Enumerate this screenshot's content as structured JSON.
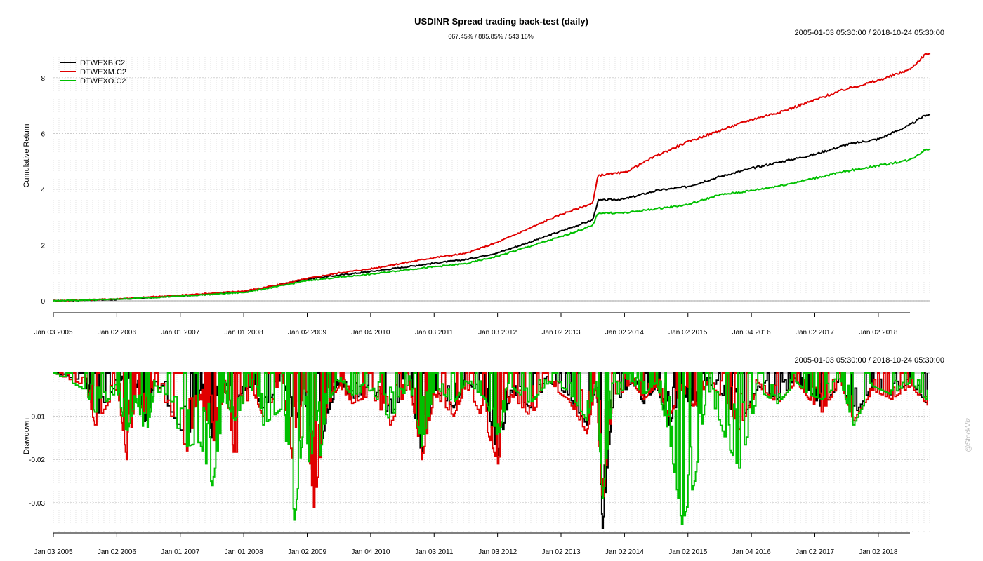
{
  "chart_data": [
    {
      "type": "line",
      "title": "USDINR Spread trading back-test (daily)",
      "subtitle": "667.45% / 885.85% / 543.16%",
      "date_range": "2005-01-03 05:30:00 / 2018-10-24 05:30:00",
      "xlabel": "",
      "ylabel": "Cumulative Return",
      "ylim": [
        0,
        8.9
      ],
      "yticks": [
        0,
        2,
        4,
        6,
        8
      ],
      "grid": true,
      "legend_position": "top-left",
      "x_ticks": [
        "Jan 03 2005",
        "Jan 02 2006",
        "Jan 01 2007",
        "Jan 01 2008",
        "Jan 02 2009",
        "Jan 04 2010",
        "Jan 03 2011",
        "Jan 03 2012",
        "Jan 02 2013",
        "Jan 02 2014",
        "Jan 02 2015",
        "Jan 04 2016",
        "Jan 02 2017",
        "Jan 02 2018"
      ],
      "x": [
        "2005-01",
        "2006-01",
        "2007-01",
        "2008-01",
        "2008-07",
        "2009-01",
        "2009-07",
        "2010-01",
        "2010-07",
        "2011-01",
        "2011-07",
        "2012-01",
        "2012-07",
        "2013-01",
        "2013-07",
        "2013-08",
        "2014-01",
        "2014-07",
        "2015-01",
        "2015-07",
        "2016-01",
        "2016-07",
        "2017-01",
        "2017-07",
        "2018-01",
        "2018-07",
        "2018-10"
      ],
      "series": [
        {
          "name": "DTWEXB.C2",
          "color": "#000000",
          "values": [
            0.0,
            0.05,
            0.18,
            0.32,
            0.55,
            0.78,
            0.92,
            1.05,
            1.2,
            1.35,
            1.48,
            1.72,
            2.1,
            2.5,
            2.9,
            3.6,
            3.65,
            3.95,
            4.1,
            4.45,
            4.75,
            5.0,
            5.25,
            5.6,
            5.8,
            6.3,
            6.67
          ]
        },
        {
          "name": "DTWEXM.C2",
          "color": "#e00000",
          "values": [
            0.0,
            0.07,
            0.2,
            0.35,
            0.55,
            0.8,
            1.0,
            1.15,
            1.35,
            1.55,
            1.7,
            2.1,
            2.6,
            3.1,
            3.5,
            4.5,
            4.6,
            5.2,
            5.7,
            6.1,
            6.5,
            6.8,
            7.2,
            7.6,
            7.9,
            8.3,
            8.86
          ]
        },
        {
          "name": "DTWEXO.C2",
          "color": "#00c000",
          "values": [
            0.0,
            0.06,
            0.17,
            0.3,
            0.5,
            0.72,
            0.85,
            0.95,
            1.1,
            1.22,
            1.33,
            1.6,
            1.95,
            2.3,
            2.7,
            3.15,
            3.15,
            3.3,
            3.45,
            3.8,
            3.95,
            4.15,
            4.4,
            4.65,
            4.85,
            5.05,
            5.43
          ]
        }
      ]
    },
    {
      "type": "line",
      "title": "",
      "date_range": "2005-01-03 05:30:00 / 2018-10-24 05:30:00",
      "xlabel": "",
      "ylabel": "Drawdown",
      "ylim": [
        -0.037,
        0.0
      ],
      "yticks": [
        -0.01,
        -0.02,
        -0.03
      ],
      "ytick_labels": [
        "-0.01",
        "-0.02",
        "-0.03"
      ],
      "grid": true,
      "x_ticks": [
        "Jan 03 2005",
        "Jan 02 2006",
        "Jan 01 2007",
        "Jan 01 2008",
        "Jan 02 2009",
        "Jan 04 2010",
        "Jan 03 2011",
        "Jan 03 2012",
        "Jan 02 2013",
        "Jan 02 2014",
        "Jan 02 2015",
        "Jan 04 2016",
        "Jan 02 2017",
        "Jan 02 2018"
      ],
      "t": [
        2005.0,
        2005.5,
        2005.65,
        2006.0,
        2006.15,
        2006.3,
        2006.45,
        2006.6,
        2007.1,
        2007.3,
        2007.5,
        2007.7,
        2007.85,
        2008.1,
        2008.3,
        2008.6,
        2008.8,
        2008.95,
        2009.1,
        2009.3,
        2009.5,
        2009.7,
        2010.0,
        2010.3,
        2010.6,
        2010.8,
        2011.0,
        2011.3,
        2011.5,
        2011.8,
        2012.0,
        2012.2,
        2012.5,
        2012.8,
        2013.1,
        2013.4,
        2013.55,
        2013.65,
        2013.8,
        2014.1,
        2014.3,
        2014.5,
        2014.7,
        2014.9,
        2015.1,
        2015.3,
        2015.6,
        2015.8,
        2016.1,
        2016.4,
        2016.7,
        2016.9,
        2017.1,
        2017.4,
        2017.6,
        2017.9,
        2018.2,
        2018.5,
        2018.8
      ],
      "series": [
        {
          "name": "DTWEXB.C2",
          "color": "#000000",
          "values": [
            0.0,
            -0.002,
            -0.01,
            -0.002,
            -0.001,
            -0.004,
            -0.012,
            -0.002,
            -0.016,
            -0.004,
            -0.015,
            -0.002,
            -0.006,
            -0.003,
            -0.008,
            -0.002,
            -0.012,
            -0.003,
            -0.027,
            -0.01,
            -0.002,
            -0.006,
            -0.004,
            -0.01,
            -0.002,
            -0.019,
            -0.004,
            -0.008,
            -0.002,
            -0.006,
            -0.019,
            -0.004,
            -0.008,
            -0.002,
            -0.005,
            -0.012,
            -0.002,
            -0.036,
            -0.008,
            -0.002,
            -0.007,
            -0.003,
            -0.012,
            -0.004,
            -0.009,
            -0.002,
            -0.006,
            -0.012,
            -0.003,
            -0.006,
            -0.002,
            -0.004,
            -0.008,
            -0.002,
            -0.01,
            -0.003,
            -0.005,
            -0.002,
            -0.008
          ]
        },
        {
          "name": "DTWEXM.C2",
          "color": "#e00000",
          "values": [
            0.0,
            -0.003,
            -0.012,
            -0.003,
            -0.02,
            -0.005,
            -0.01,
            -0.002,
            -0.018,
            -0.005,
            -0.017,
            -0.003,
            -0.02,
            -0.003,
            -0.01,
            -0.002,
            -0.024,
            -0.006,
            -0.031,
            -0.008,
            -0.003,
            -0.007,
            -0.005,
            -0.012,
            -0.002,
            -0.02,
            -0.005,
            -0.01,
            -0.003,
            -0.012,
            -0.021,
            -0.005,
            -0.01,
            -0.003,
            -0.006,
            -0.014,
            -0.003,
            -0.031,
            -0.007,
            -0.002,
            -0.006,
            -0.003,
            -0.01,
            -0.004,
            -0.008,
            -0.002,
            -0.007,
            -0.013,
            -0.003,
            -0.007,
            -0.002,
            -0.006,
            -0.009,
            -0.002,
            -0.011,
            -0.004,
            -0.006,
            -0.003,
            -0.008
          ]
        },
        {
          "name": "DTWEXO.C2",
          "color": "#00c000",
          "values": [
            0.0,
            -0.004,
            -0.009,
            -0.004,
            -0.014,
            -0.006,
            -0.015,
            -0.003,
            -0.017,
            -0.016,
            -0.026,
            -0.006,
            -0.011,
            -0.003,
            -0.012,
            -0.008,
            -0.034,
            -0.01,
            -0.031,
            -0.007,
            -0.002,
            -0.005,
            -0.004,
            -0.011,
            -0.002,
            -0.017,
            -0.003,
            -0.007,
            -0.002,
            -0.006,
            -0.015,
            -0.003,
            -0.007,
            -0.002,
            -0.004,
            -0.011,
            -0.002,
            -0.029,
            -0.006,
            -0.002,
            -0.005,
            -0.002,
            -0.015,
            -0.035,
            -0.025,
            -0.003,
            -0.016,
            -0.022,
            -0.004,
            -0.007,
            -0.002,
            -0.005,
            -0.006,
            -0.002,
            -0.012,
            -0.003,
            -0.005,
            -0.002,
            -0.007
          ]
        }
      ]
    }
  ],
  "watermark": "@StockViz"
}
